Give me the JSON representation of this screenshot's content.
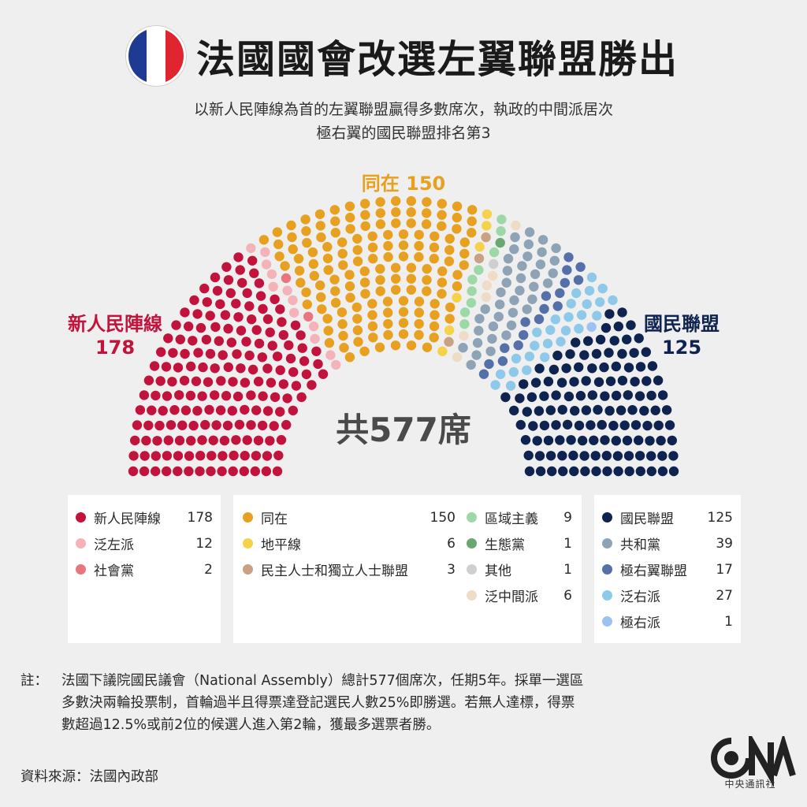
{
  "header": {
    "title": "法國國會改選左翼聯盟勝出",
    "subtitle_line1": "以新人民陣線為首的左翼聯盟贏得多數席次，執政的中間派居次",
    "subtitle_line2": "極右翼的國民聯盟排名第3"
  },
  "flag_colors": [
    "#1f3a93",
    "#ffffff",
    "#e02530"
  ],
  "chart_data": {
    "type": "parliament",
    "total_label": "共577席",
    "total": 577,
    "callouts": {
      "left": {
        "name": "新人民陣線",
        "value": "178"
      },
      "top": {
        "name": "同在",
        "value": "150",
        "text": "同在 150"
      },
      "right": {
        "name": "國民聯盟",
        "value": "125"
      }
    },
    "parties": [
      {
        "name": "新人民陣線",
        "seats": 178,
        "color": "#c1133c"
      },
      {
        "name": "泛左派",
        "seats": 12,
        "color": "#f4b3b8"
      },
      {
        "name": "社會黨",
        "seats": 2,
        "color": "#e9767f"
      },
      {
        "name": "同在",
        "seats": 150,
        "color": "#e8a020"
      },
      {
        "name": "地平線",
        "seats": 6,
        "color": "#f6d24a"
      },
      {
        "name": "民主人士和獨立人士聯盟",
        "seats": 3,
        "color": "#c9a184"
      },
      {
        "name": "區域主義",
        "seats": 9,
        "color": "#9ed8a6"
      },
      {
        "name": "生態黨",
        "seats": 1,
        "color": "#6aa872"
      },
      {
        "name": "其他",
        "seats": 1,
        "color": "#cfcfcf"
      },
      {
        "name": "泛中間派",
        "seats": 6,
        "color": "#efdcc6"
      },
      {
        "name": "共和黨",
        "seats": 39,
        "color": "#8fa3b7"
      },
      {
        "name": "極右翼聯盟",
        "seats": 17,
        "color": "#5570a8"
      },
      {
        "name": "泛右派",
        "seats": 27,
        "color": "#8ec9ea"
      },
      {
        "name": "極右派",
        "seats": 1,
        "color": "#9dc1f1"
      },
      {
        "name": "國民聯盟",
        "seats": 125,
        "color": "#0e2350"
      }
    ]
  },
  "legend": {
    "box1": [
      {
        "name": "新人民陣線",
        "value": "178",
        "color": "#c1133c"
      },
      {
        "name": "泛左派",
        "value": "12",
        "color": "#f4b3b8"
      },
      {
        "name": "社會黨",
        "value": "2",
        "color": "#e9767f"
      }
    ],
    "box2a": [
      {
        "name": "同在",
        "value": "150",
        "color": "#e8a020"
      },
      {
        "name": "地平線",
        "value": "6",
        "color": "#f6d24a"
      },
      {
        "name": "民主人士和獨立人士聯盟",
        "value": "3",
        "color": "#c9a184"
      }
    ],
    "box2b": [
      {
        "name": "區域主義",
        "value": "9",
        "color": "#9ed8a6"
      },
      {
        "name": "生態黨",
        "value": "1",
        "color": "#6aa872"
      },
      {
        "name": "其他",
        "value": "1",
        "color": "#cfcfcf"
      },
      {
        "name": "泛中間派",
        "value": "6",
        "color": "#efdcc6"
      }
    ],
    "box3": [
      {
        "name": "國民聯盟",
        "value": "125",
        "color": "#0e2350"
      },
      {
        "name": "共和黨",
        "value": "39",
        "color": "#8fa3b7"
      },
      {
        "name": "極右翼聯盟",
        "value": "17",
        "color": "#5570a8"
      },
      {
        "name": "泛右派",
        "value": "27",
        "color": "#8ec9ea"
      },
      {
        "name": "極右派",
        "value": "1",
        "color": "#9dc1f1"
      }
    ]
  },
  "note": {
    "prefix": "註：",
    "line1": "法國下議院國民議會（National Assembly）總計577個席次，任期5年。採單一選區",
    "line2": "多數決兩輪投票制，首輪過半且得票達登記選民人數25%即勝選。若無人達標，得票",
    "line3": "數超過12.5%或前2位的候選人進入第2輪，獲最多選票者勝。"
  },
  "source": "資料來源：法國內政部",
  "logo": {
    "text": "中央通訊社",
    "icon": "cna-logo-icon"
  }
}
